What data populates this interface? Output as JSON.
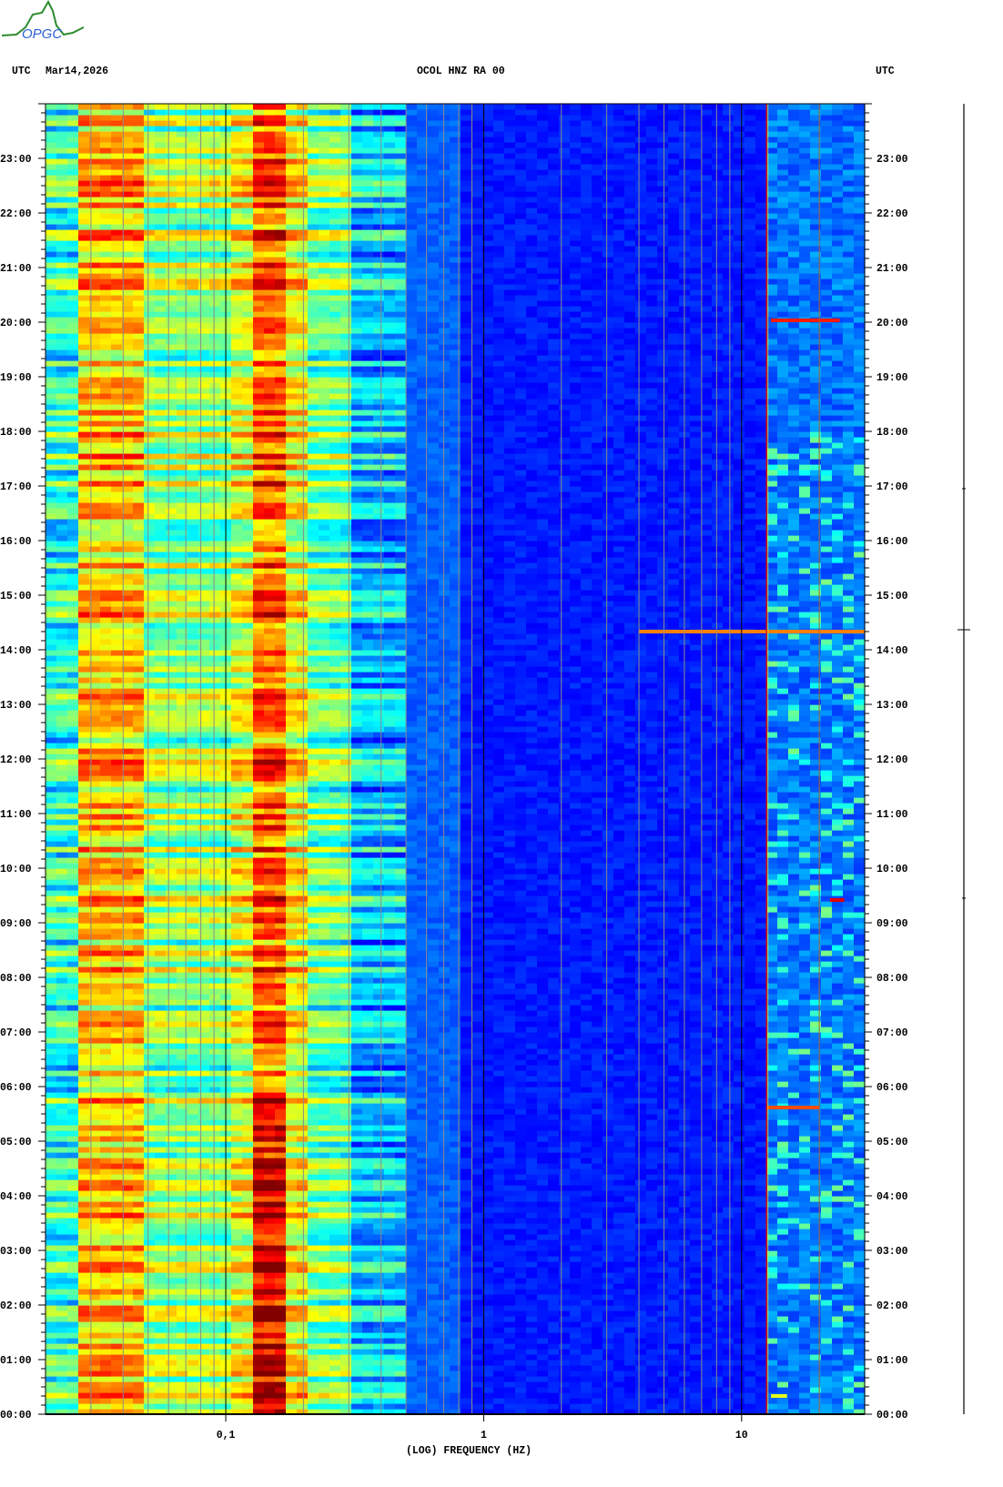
{
  "logo": {
    "text": "OPGC",
    "mountain_color": "#2e8b2e",
    "text_color": "#2a5fd8"
  },
  "header": {
    "left_tz": "UTC",
    "date": "Mar14,2026",
    "station": "OCOL HNZ RA 00",
    "right_tz": "UTC"
  },
  "chart_data": {
    "type": "heatmap",
    "title": "OCOL HNZ RA 00",
    "date": "Mar14,2026",
    "xlabel": "(LOG) FREQUENCY (HZ)",
    "x_scale": "log",
    "xlim": [
      0.02,
      30
    ],
    "x_ticks": [
      {
        "value": 0.1,
        "label": "0,1"
      },
      {
        "value": 1,
        "label": "1"
      },
      {
        "value": 10,
        "label": "10"
      }
    ],
    "ylabel": "UTC",
    "ylim_hours": [
      0,
      24
    ],
    "y_tick_labels": [
      "00:00",
      "01:00",
      "02:00",
      "03:00",
      "04:00",
      "05:00",
      "06:00",
      "07:00",
      "08:00",
      "09:00",
      "10:00",
      "11:00",
      "12:00",
      "13:00",
      "14:00",
      "15:00",
      "16:00",
      "17:00",
      "18:00",
      "19:00",
      "20:00",
      "21:00",
      "22:00",
      "23:00"
    ],
    "grid": "log decades",
    "colormap": "jet",
    "band_levels": [
      {
        "f_min": 0.02,
        "f_max": 0.027,
        "level": 0.42
      },
      {
        "f_min": 0.027,
        "f_max": 0.05,
        "level": 0.68
      },
      {
        "f_min": 0.05,
        "f_max": 0.1,
        "level": 0.52
      },
      {
        "f_min": 0.1,
        "f_max": 0.125,
        "level": 0.6
      },
      {
        "f_min": 0.125,
        "f_max": 0.17,
        "level": 0.78
      },
      {
        "f_min": 0.17,
        "f_max": 0.2,
        "level": 0.62
      },
      {
        "f_min": 0.2,
        "f_max": 0.3,
        "level": 0.48
      },
      {
        "f_min": 0.3,
        "f_max": 0.5,
        "level": 0.32
      },
      {
        "f_min": 0.5,
        "f_max": 0.8,
        "level": 0.22
      },
      {
        "f_min": 0.8,
        "f_max": 12.5,
        "level": 0.15
      },
      {
        "f_min": 12.5,
        "f_max": 30,
        "level": 0.24
      }
    ],
    "events": [
      {
        "time": "14:20",
        "f_min": 4,
        "f_max": 30,
        "level": 0.75
      },
      {
        "time": "20:02",
        "f_min": 13,
        "f_max": 24,
        "level": 0.85
      },
      {
        "time": "05:37",
        "f_min": 12.5,
        "f_max": 20,
        "level": 0.8
      },
      {
        "time": "09:25",
        "f_min": 22,
        "f_max": 25,
        "level": 0.9
      },
      {
        "time": "00:20",
        "f_min": 13,
        "f_max": 15,
        "level": 0.6
      }
    ],
    "persistent_lines": [
      {
        "frequency": 12.5,
        "color": "#d01010"
      }
    ]
  }
}
